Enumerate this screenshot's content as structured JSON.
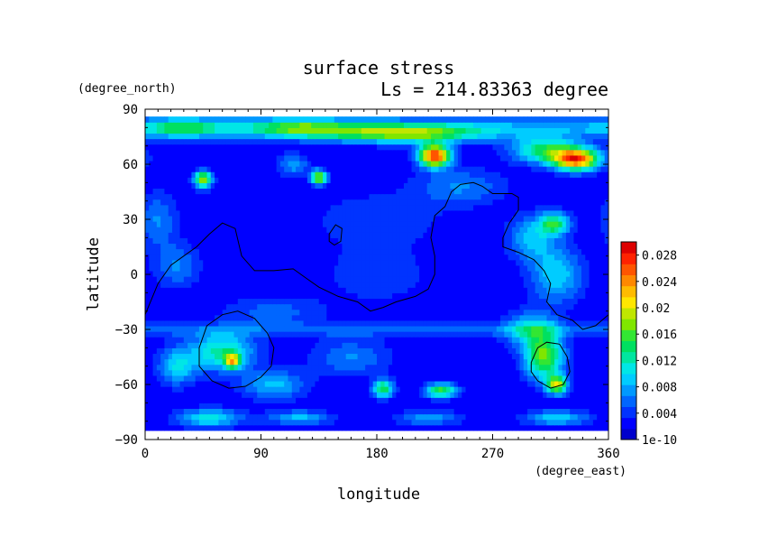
{
  "chart_data": {
    "type": "heatmap",
    "title": "surface stress",
    "subtitle": "Ls = 214.83363 degree",
    "xlabel": "longitude",
    "ylabel": "latitude",
    "x_unit": "(degree_east)",
    "y_unit": "(degree_north)",
    "xlim": [
      0,
      360
    ],
    "ylim": [
      -90,
      90
    ],
    "x_ticks": [
      "0",
      "90",
      "180",
      "270",
      "360"
    ],
    "y_ticks": [
      "90",
      "60",
      "30",
      "0",
      "−30",
      "−60",
      "−90"
    ],
    "colorbar_labels": [
      "1e-10",
      "0.004",
      "0.008",
      "0.012",
      "0.016",
      "0.02",
      "0.024",
      "0.028"
    ],
    "colorbar_range": [
      0,
      0.03
    ],
    "colorbar_colors": [
      "#0000cc",
      "#0000ff",
      "#0033ff",
      "#0066ff",
      "#0099ff",
      "#00ccff",
      "#00e6e6",
      "#00e6a0",
      "#00e060",
      "#33e633",
      "#80e600",
      "#c0e600",
      "#ffe600",
      "#ffbb00",
      "#ff8800",
      "#ff5500",
      "#ff2200",
      "#dd0000"
    ],
    "background_level": 0.0018,
    "features": [
      {
        "lon": 200,
        "lat": 77,
        "value": 0.013,
        "spread_lon": 60,
        "spread_lat": 5
      },
      {
        "lon": 120,
        "lat": 80,
        "value": 0.009,
        "spread_lon": 40,
        "spread_lat": 5
      },
      {
        "lon": 30,
        "lat": 80,
        "value": 0.008,
        "spread_lon": 30,
        "spread_lat": 5
      },
      {
        "lon": 225,
        "lat": 65,
        "value": 0.026,
        "spread_lon": 12,
        "spread_lat": 6
      },
      {
        "lon": 335,
        "lat": 63,
        "value": 0.024,
        "spread_lon": 18,
        "spread_lat": 6
      },
      {
        "lon": 310,
        "lat": 68,
        "value": 0.012,
        "spread_lon": 25,
        "spread_lat": 7
      },
      {
        "lon": 45,
        "lat": 52,
        "value": 0.016,
        "spread_lon": 7,
        "spread_lat": 5
      },
      {
        "lon": 135,
        "lat": 53,
        "value": 0.017,
        "spread_lon": 6,
        "spread_lat": 4
      },
      {
        "lon": 115,
        "lat": 60,
        "value": 0.006,
        "spread_lon": 12,
        "spread_lat": 6
      },
      {
        "lon": 245,
        "lat": 48,
        "value": 0.005,
        "spread_lon": 35,
        "spread_lat": 10
      },
      {
        "lon": 318,
        "lat": 28,
        "value": 0.012,
        "spread_lon": 12,
        "spread_lat": 6
      },
      {
        "lon": 300,
        "lat": 20,
        "value": 0.007,
        "spread_lon": 18,
        "spread_lat": 12
      },
      {
        "lon": 320,
        "lat": 0,
        "value": 0.008,
        "spread_lon": 20,
        "spread_lat": 15
      },
      {
        "lon": 10,
        "lat": 30,
        "value": 0.005,
        "spread_lon": 15,
        "spread_lat": 15
      },
      {
        "lon": 25,
        "lat": 5,
        "value": 0.005,
        "spread_lon": 18,
        "spread_lat": 12
      },
      {
        "lon": 180,
        "lat": 0,
        "value": 0.003,
        "spread_lon": 40,
        "spread_lat": 15
      },
      {
        "lon": 100,
        "lat": -20,
        "value": 0.004,
        "spread_lon": 40,
        "spread_lat": 8
      },
      {
        "lon": 60,
        "lat": -42,
        "value": 0.011,
        "spread_lon": 25,
        "spread_lat": 10
      },
      {
        "lon": 68,
        "lat": -47,
        "value": 0.015,
        "spread_lon": 6,
        "spread_lat": 4
      },
      {
        "lon": 25,
        "lat": -50,
        "value": 0.008,
        "spread_lon": 15,
        "spread_lat": 10
      },
      {
        "lon": 100,
        "lat": -60,
        "value": 0.007,
        "spread_lon": 25,
        "spread_lat": 8
      },
      {
        "lon": 185,
        "lat": -62,
        "value": 0.013,
        "spread_lon": 8,
        "spread_lat": 5
      },
      {
        "lon": 230,
        "lat": -63,
        "value": 0.014,
        "spread_lon": 12,
        "spread_lat": 4
      },
      {
        "lon": 160,
        "lat": -45,
        "value": 0.005,
        "spread_lon": 30,
        "spread_lat": 10
      },
      {
        "lon": 310,
        "lat": -45,
        "value": 0.015,
        "spread_lon": 15,
        "spread_lat": 12
      },
      {
        "lon": 320,
        "lat": -60,
        "value": 0.017,
        "spread_lon": 8,
        "spread_lat": 5
      },
      {
        "lon": 300,
        "lat": -30,
        "value": 0.008,
        "spread_lon": 20,
        "spread_lat": 10
      },
      {
        "lon": 50,
        "lat": -78,
        "value": 0.009,
        "spread_lon": 25,
        "spread_lat": 5
      },
      {
        "lon": 120,
        "lat": -78,
        "value": 0.007,
        "spread_lon": 25,
        "spread_lat": 4
      },
      {
        "lon": 220,
        "lat": -78,
        "value": 0.006,
        "spread_lon": 25,
        "spread_lat": 4
      },
      {
        "lon": 320,
        "lat": -78,
        "value": 0.008,
        "spread_lon": 25,
        "spread_lat": 4
      },
      {
        "lon": 180,
        "lat": 30,
        "value": 0.003,
        "spread_lon": 50,
        "spread_lat": 15
      }
    ],
    "band_features": [
      {
        "lat": -30,
        "value": 0.0035,
        "spread_lat": 4
      },
      {
        "lat": 80,
        "value": 0.006,
        "spread_lat": 6
      }
    ],
    "contours": [
      {
        "name": "topography-contour-main",
        "closed": false,
        "points": [
          [
            0,
            -22
          ],
          [
            10,
            -5
          ],
          [
            20,
            5
          ],
          [
            30,
            10
          ],
          [
            40,
            15
          ],
          [
            50,
            22
          ],
          [
            60,
            28
          ],
          [
            70,
            25
          ],
          [
            75,
            10
          ],
          [
            85,
            2
          ],
          [
            100,
            2
          ],
          [
            115,
            3
          ],
          [
            125,
            -2
          ],
          [
            135,
            -7
          ],
          [
            150,
            -12
          ],
          [
            165,
            -15
          ],
          [
            175,
            -20
          ],
          [
            185,
            -18
          ],
          [
            195,
            -15
          ],
          [
            210,
            -12
          ],
          [
            220,
            -8
          ],
          [
            225,
            0
          ],
          [
            225,
            10
          ],
          [
            222,
            20
          ],
          [
            225,
            32
          ],
          [
            233,
            37
          ],
          [
            238,
            45
          ],
          [
            245,
            49
          ],
          [
            255,
            50
          ],
          [
            262,
            48
          ],
          [
            270,
            44
          ],
          [
            285,
            44
          ],
          [
            290,
            42
          ],
          [
            290,
            35
          ],
          [
            283,
            28
          ],
          [
            278,
            20
          ],
          [
            278,
            15
          ],
          [
            290,
            12
          ],
          [
            302,
            8
          ],
          [
            310,
            2
          ],
          [
            315,
            -5
          ],
          [
            312,
            -15
          ],
          [
            320,
            -22
          ],
          [
            332,
            -25
          ],
          [
            340,
            -30
          ],
          [
            350,
            -28
          ],
          [
            360,
            -22
          ]
        ]
      },
      {
        "name": "topography-contour-small-north",
        "closed": true,
        "points": [
          [
            143,
            22
          ],
          [
            148,
            27
          ],
          [
            153,
            25
          ],
          [
            152,
            18
          ],
          [
            147,
            16
          ],
          [
            143,
            18
          ]
        ]
      },
      {
        "name": "topography-contour-west-basin",
        "closed": true,
        "points": [
          [
            42,
            -40
          ],
          [
            48,
            -28
          ],
          [
            60,
            -22
          ],
          [
            72,
            -20
          ],
          [
            85,
            -24
          ],
          [
            95,
            -32
          ],
          [
            100,
            -40
          ],
          [
            98,
            -50
          ],
          [
            90,
            -56
          ],
          [
            78,
            -61
          ],
          [
            65,
            -62
          ],
          [
            52,
            -58
          ],
          [
            42,
            -50
          ]
        ]
      },
      {
        "name": "topography-contour-east-basin",
        "closed": true,
        "points": [
          [
            300,
            -48
          ],
          [
            305,
            -40
          ],
          [
            312,
            -37
          ],
          [
            322,
            -38
          ],
          [
            328,
            -45
          ],
          [
            330,
            -53
          ],
          [
            325,
            -60
          ],
          [
            315,
            -62
          ],
          [
            305,
            -58
          ],
          [
            300,
            -53
          ]
        ]
      }
    ]
  }
}
